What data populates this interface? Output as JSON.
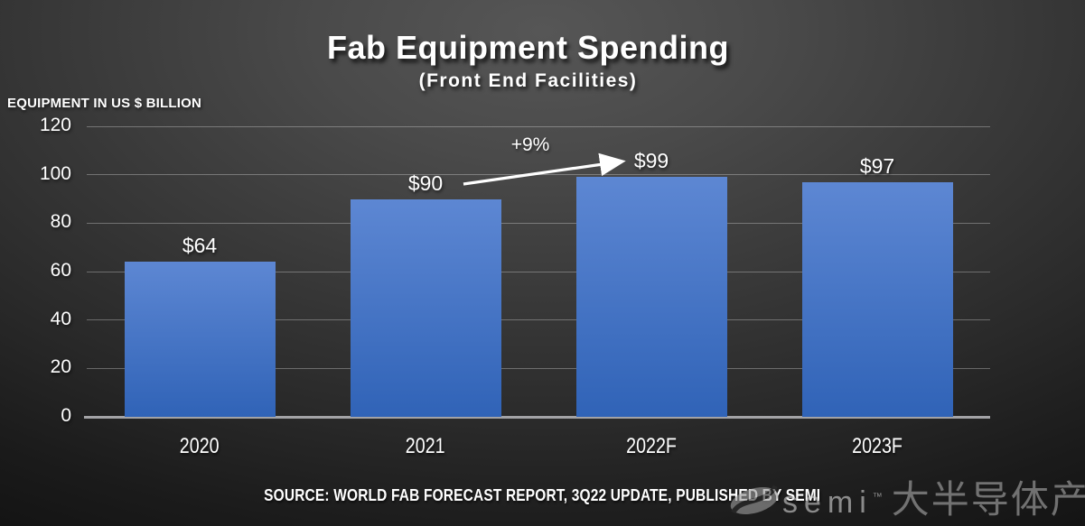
{
  "title": "Fab Equipment Spending",
  "subtitle": "(Front End Facilities)",
  "y_axis_title": "EQUIPMENT IN US $ BILLION",
  "source": "SOURCE: WORLD FAB FORECAST REPORT, 3Q22 UPDATE, PUBLISHED BY SEMI",
  "annotation_label": "+9%",
  "watermark": {
    "brand": "semi",
    "trademark": "™",
    "site_name": "大半导体产业网"
  },
  "chart_data": {
    "type": "bar",
    "title": "Fab Equipment Spending",
    "subtitle": "(Front End Facilities)",
    "ylabel": "EQUIPMENT IN US $ BILLION",
    "xlabel": "",
    "categories": [
      "2020",
      "2021",
      "2022F",
      "2023F"
    ],
    "values": [
      64,
      90,
      99,
      97
    ],
    "data_labels": [
      "$64",
      "$90",
      "$99",
      "$97"
    ],
    "y_ticks": [
      0,
      20,
      40,
      60,
      80,
      100,
      120
    ],
    "ylim": [
      0,
      120
    ],
    "grid": true,
    "legend_position": "none",
    "annotations": [
      {
        "text": "+9%",
        "from_category": "2021",
        "to_category": "2022F"
      }
    ],
    "bar_color_top": "#5d87d3",
    "bar_color_bottom": "#3063b7"
  },
  "colors": {
    "background_center": "#565656",
    "background_edge": "#141414",
    "text": "#ffffff",
    "gridline": "#7a7a7a",
    "axis_line": "#a3a3a6",
    "bar_top": "#5d87d3",
    "bar_bottom": "#3063b7",
    "watermark_gray": "#a8a8a8"
  }
}
